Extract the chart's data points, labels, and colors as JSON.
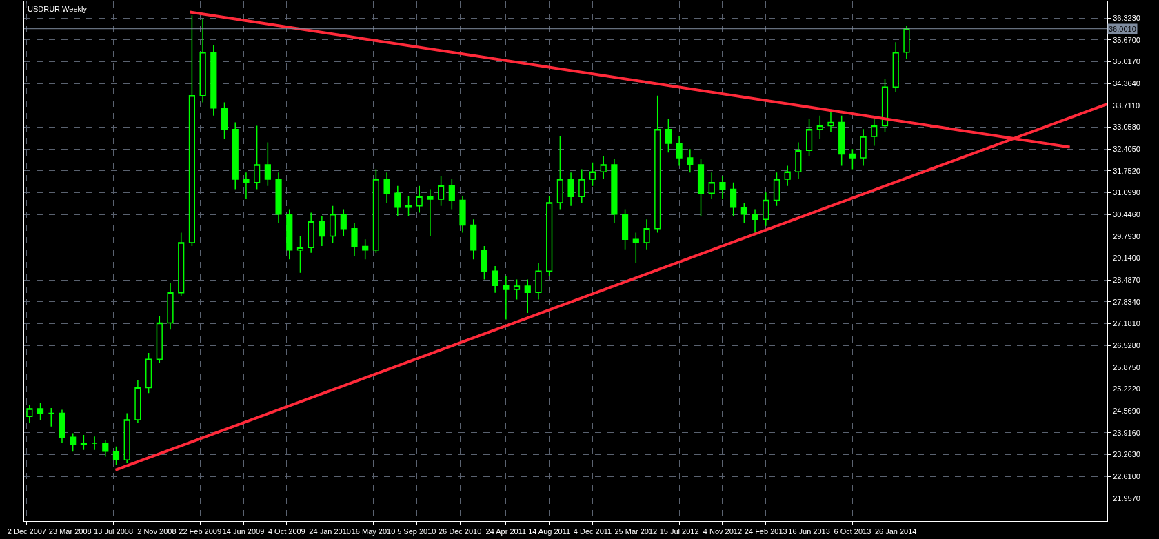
{
  "chart_data": {
    "type": "candlestick",
    "title": "USDRUR,Weekly",
    "xlim": [
      "2007-11-25",
      "2015-07-27"
    ],
    "ylim": [
      21.27,
      36.82
    ],
    "xticks": [
      {
        "value": "2007-12-02",
        "label": "2 Dec 2007"
      },
      {
        "value": "2008-03-23",
        "label": "23 Mar 2008"
      },
      {
        "value": "2008-07-13",
        "label": "13 Jul 2008"
      },
      {
        "value": "2008-11-02",
        "label": "2 Nov 2008"
      },
      {
        "value": "2009-02-22",
        "label": "22 Feb 2009"
      },
      {
        "value": "2009-06-14",
        "label": "14 Jun 2009"
      },
      {
        "value": "2009-10-04",
        "label": "4 Oct 2009"
      },
      {
        "value": "2010-01-24",
        "label": "24 Jan 2010"
      },
      {
        "value": "2010-05-16",
        "label": "16 May 2010"
      },
      {
        "value": "2010-09-05",
        "label": "5 Sep 2010"
      },
      {
        "value": "2010-12-26",
        "label": "26 Dec 2010"
      },
      {
        "value": "2011-04-24",
        "label": "24 Apr 2011"
      },
      {
        "value": "2011-08-14",
        "label": "14 Aug 2011"
      },
      {
        "value": "2011-12-04",
        "label": "4 Dec 2011"
      },
      {
        "value": "2012-03-25",
        "label": "25 Mar 2012"
      },
      {
        "value": "2012-07-15",
        "label": "15 Jul 2012"
      },
      {
        "value": "2012-11-04",
        "label": "4 Nov 2012"
      },
      {
        "value": "2013-02-24",
        "label": "24 Feb 2013"
      },
      {
        "value": "2013-06-16",
        "label": "16 Jun 2013"
      },
      {
        "value": "2013-10-06",
        "label": "6 Oct 2013"
      },
      {
        "value": "2014-01-26",
        "label": "26 Jan 2014"
      }
    ],
    "yticks": [
      {
        "value": 36.323,
        "label": "36.3230"
      },
      {
        "value": 35.67,
        "label": "35.6700"
      },
      {
        "value": 35.017,
        "label": "35.0170"
      },
      {
        "value": 34.364,
        "label": "34.3640"
      },
      {
        "value": 33.711,
        "label": "33.7110"
      },
      {
        "value": 33.058,
        "label": "33.0580"
      },
      {
        "value": 32.405,
        "label": "32.4050"
      },
      {
        "value": 31.752,
        "label": "31.7520"
      },
      {
        "value": 31.099,
        "label": "31.0990"
      },
      {
        "value": 30.446,
        "label": "30.4460"
      },
      {
        "value": 29.793,
        "label": "29.7930"
      },
      {
        "value": 29.14,
        "label": "29.1400"
      },
      {
        "value": 28.487,
        "label": "28.4870"
      },
      {
        "value": 27.834,
        "label": "27.8340"
      },
      {
        "value": 27.181,
        "label": "27.1810"
      },
      {
        "value": 26.528,
        "label": "26.5280"
      },
      {
        "value": 25.875,
        "label": "25.8750"
      },
      {
        "value": 25.222,
        "label": "25.2220"
      },
      {
        "value": 24.569,
        "label": "24.5690"
      },
      {
        "value": 23.916,
        "label": "23.9160"
      },
      {
        "value": 23.263,
        "label": "23.2630"
      },
      {
        "value": 22.61,
        "label": "22.6100"
      },
      {
        "value": 21.957,
        "label": "21.9570"
      }
    ],
    "grid": true,
    "ref_lines": [
      {
        "axis": "y",
        "value": 36.001,
        "label": "36.0010",
        "color": "#7f8c9f",
        "line_style": "solid"
      }
    ],
    "series": [
      {
        "color": "#00ff00",
        "x": [
          "2007-12-09",
          "2008-01-06",
          "2008-02-03",
          "2008-03-02",
          "2008-03-30",
          "2008-04-27",
          "2008-05-25",
          "2008-06-22",
          "2008-07-20",
          "2008-08-17",
          "2008-09-14",
          "2008-10-12",
          "2008-11-09",
          "2008-12-07",
          "2009-01-04",
          "2009-02-01",
          "2009-03-01",
          "2009-03-29",
          "2009-04-26",
          "2009-05-24",
          "2009-06-21",
          "2009-07-19",
          "2009-08-16",
          "2009-09-13",
          "2009-10-11",
          "2009-11-08",
          "2009-12-06",
          "2010-01-03",
          "2010-01-31",
          "2010-02-28",
          "2010-03-28",
          "2010-04-25",
          "2010-05-23",
          "2010-06-20",
          "2010-07-18",
          "2010-08-15",
          "2010-09-12",
          "2010-10-10",
          "2010-11-07",
          "2010-12-05",
          "2011-01-02",
          "2011-01-30",
          "2011-02-27",
          "2011-03-27",
          "2011-04-24",
          "2011-05-22",
          "2011-06-19",
          "2011-07-17",
          "2011-08-14",
          "2011-09-11",
          "2011-10-09",
          "2011-11-06",
          "2011-12-04",
          "2012-01-01",
          "2012-01-29",
          "2012-02-26",
          "2012-03-25",
          "2012-04-22",
          "2012-05-20",
          "2012-06-17",
          "2012-07-15",
          "2012-08-12",
          "2012-09-09",
          "2012-10-07",
          "2012-11-04",
          "2012-12-02",
          "2012-12-30",
          "2013-01-27",
          "2013-02-24",
          "2013-03-24",
          "2013-04-21",
          "2013-05-19",
          "2013-06-16",
          "2013-07-14",
          "2013-08-11",
          "2013-09-08",
          "2013-10-06",
          "2013-11-03",
          "2013-12-01",
          "2013-12-29",
          "2014-01-26",
          "2014-02-23"
        ],
        "ohlc": [
          [
            24.4,
            24.75,
            24.2,
            24.63
          ],
          [
            24.63,
            24.8,
            24.3,
            24.5
          ],
          [
            24.5,
            24.65,
            24.1,
            24.5
          ],
          [
            24.5,
            24.6,
            23.6,
            23.78
          ],
          [
            23.78,
            23.9,
            23.35,
            23.57
          ],
          [
            23.57,
            23.85,
            23.4,
            23.6
          ],
          [
            23.6,
            23.8,
            23.4,
            23.6
          ],
          [
            23.6,
            23.7,
            23.2,
            23.36
          ],
          [
            23.36,
            23.5,
            22.95,
            23.1
          ],
          [
            23.1,
            24.5,
            23.0,
            24.3
          ],
          [
            24.3,
            25.5,
            24.2,
            25.26
          ],
          [
            25.26,
            26.3,
            25.1,
            26.11
          ],
          [
            26.11,
            27.4,
            26.0,
            27.2
          ],
          [
            27.2,
            28.4,
            27.0,
            28.1
          ],
          [
            28.1,
            29.9,
            28.0,
            29.6
          ],
          [
            29.6,
            36.4,
            29.5,
            34.0
          ],
          [
            34.0,
            36.3,
            33.8,
            35.3
          ],
          [
            35.3,
            35.5,
            33.4,
            33.63
          ],
          [
            33.63,
            33.8,
            32.7,
            32.99
          ],
          [
            32.99,
            33.2,
            31.2,
            31.5
          ],
          [
            31.5,
            31.7,
            30.9,
            31.4
          ],
          [
            31.4,
            33.1,
            31.2,
            31.93
          ],
          [
            31.93,
            32.6,
            31.3,
            31.5
          ],
          [
            31.5,
            31.7,
            30.2,
            30.45
          ],
          [
            30.45,
            30.6,
            29.1,
            29.38
          ],
          [
            29.38,
            29.8,
            28.7,
            29.45
          ],
          [
            29.45,
            30.5,
            29.3,
            30.23
          ],
          [
            30.23,
            30.4,
            29.5,
            29.8
          ],
          [
            29.8,
            30.7,
            29.6,
            30.45
          ],
          [
            30.45,
            30.6,
            29.8,
            30.02
          ],
          [
            30.02,
            30.2,
            29.2,
            29.49
          ],
          [
            29.49,
            29.7,
            29.1,
            29.38
          ],
          [
            29.38,
            31.8,
            29.3,
            31.5
          ],
          [
            31.5,
            31.7,
            30.8,
            31.08
          ],
          [
            31.08,
            31.3,
            30.4,
            30.66
          ],
          [
            30.66,
            31.0,
            30.4,
            30.7
          ],
          [
            30.7,
            31.3,
            30.5,
            30.98
          ],
          [
            30.98,
            31.2,
            29.8,
            30.9
          ],
          [
            30.9,
            31.6,
            30.7,
            31.3
          ],
          [
            31.3,
            31.5,
            30.6,
            30.87
          ],
          [
            30.87,
            31.0,
            29.9,
            30.13
          ],
          [
            30.13,
            30.3,
            29.1,
            29.38
          ],
          [
            29.38,
            29.5,
            28.5,
            28.75
          ],
          [
            28.75,
            28.9,
            28.1,
            28.32
          ],
          [
            28.32,
            28.6,
            27.3,
            28.2
          ],
          [
            28.2,
            28.5,
            27.9,
            28.3
          ],
          [
            28.3,
            28.5,
            27.5,
            28.11
          ],
          [
            28.11,
            29.0,
            27.9,
            28.75
          ],
          [
            28.75,
            31.0,
            28.6,
            30.8
          ],
          [
            30.8,
            32.8,
            30.6,
            31.5
          ],
          [
            31.5,
            31.7,
            30.7,
            30.98
          ],
          [
            30.98,
            31.8,
            30.8,
            31.5
          ],
          [
            31.5,
            32.0,
            31.3,
            31.72
          ],
          [
            31.72,
            32.2,
            31.5,
            31.93
          ],
          [
            31.93,
            32.1,
            30.2,
            30.45
          ],
          [
            30.45,
            30.6,
            29.4,
            29.7
          ],
          [
            29.7,
            29.9,
            29.0,
            29.6
          ],
          [
            29.6,
            30.3,
            29.4,
            30.02
          ],
          [
            30.02,
            34.0,
            29.9,
            32.99
          ],
          [
            32.99,
            33.3,
            32.3,
            32.57
          ],
          [
            32.57,
            32.8,
            31.9,
            32.14
          ],
          [
            32.14,
            32.4,
            31.7,
            31.93
          ],
          [
            31.93,
            32.1,
            30.4,
            31.08
          ],
          [
            31.08,
            31.7,
            30.9,
            31.4
          ],
          [
            31.4,
            31.6,
            30.9,
            31.2
          ],
          [
            31.2,
            31.4,
            30.4,
            30.66
          ],
          [
            30.66,
            30.8,
            30.2,
            30.45
          ],
          [
            30.45,
            30.6,
            29.9,
            30.3
          ],
          [
            30.3,
            31.1,
            30.1,
            30.87
          ],
          [
            30.87,
            31.7,
            30.7,
            31.5
          ],
          [
            31.5,
            31.9,
            31.3,
            31.72
          ],
          [
            31.72,
            32.6,
            31.5,
            32.36
          ],
          [
            32.36,
            33.3,
            32.2,
            32.99
          ],
          [
            32.99,
            33.4,
            32.7,
            33.1
          ],
          [
            33.1,
            33.5,
            32.9,
            33.2
          ],
          [
            33.2,
            33.4,
            31.9,
            32.25
          ],
          [
            32.25,
            32.4,
            31.8,
            32.14
          ],
          [
            32.14,
            33.0,
            31.9,
            32.78
          ],
          [
            32.78,
            33.3,
            32.5,
            33.1
          ],
          [
            33.1,
            34.5,
            32.9,
            34.26
          ],
          [
            34.26,
            35.6,
            34.1,
            35.3
          ],
          [
            35.3,
            36.1,
            35.1,
            36.0
          ]
        ]
      },
      {
        "type": "line",
        "color": "#ff2a3a",
        "x": [
          "2009-01-27",
          "2015-04-21"
        ],
        "values": [
          36.5,
          32.46
        ]
      },
      {
        "type": "line",
        "color": "#ff2a3a",
        "x": [
          "2008-07-18",
          "2015-07-27"
        ],
        "values": [
          22.8,
          33.75
        ]
      }
    ]
  }
}
